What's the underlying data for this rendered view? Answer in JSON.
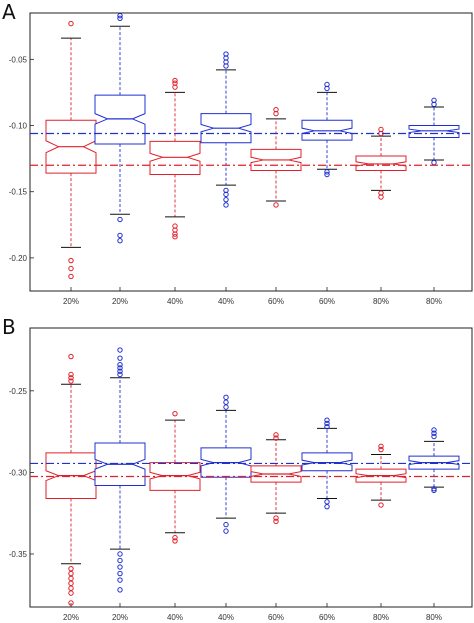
{
  "panels": [
    {
      "letter": "A"
    },
    {
      "letter": "B"
    }
  ],
  "colors": {
    "red": "#e0202a",
    "blue": "#2030d0",
    "black": "#111111"
  },
  "chart_data": [
    {
      "type": "box",
      "panel": "A",
      "title": "",
      "xlabel": "",
      "ylabel": "",
      "categories": [
        "20%",
        "20%",
        "40%",
        "40%",
        "60%",
        "60%",
        "80%",
        "80%"
      ],
      "box_colors": [
        "red",
        "blue",
        "red",
        "blue",
        "red",
        "blue",
        "red",
        "blue"
      ],
      "ylim": [
        -0.225,
        -0.015
      ],
      "yticks": [
        -0.2,
        -0.15,
        -0.1,
        -0.05
      ],
      "ytick_labels": [
        "-0.20",
        "-0.15",
        "-0.10",
        "-0.05"
      ],
      "reference_lines": [
        {
          "color": "blue",
          "style": "dash-dot",
          "value": -0.106
        },
        {
          "color": "red",
          "style": "dash-dot",
          "value": -0.13
        }
      ],
      "boxes": [
        {
          "q1": -0.136,
          "median": -0.116,
          "q3": -0.096,
          "notch": 0.0045,
          "whisker_low": -0.192,
          "whisker_high": -0.034,
          "outliers": [
            -0.202,
            -0.208,
            -0.214,
            -0.023
          ]
        },
        {
          "q1": -0.114,
          "median": -0.095,
          "q3": -0.077,
          "notch": 0.004,
          "whisker_low": -0.167,
          "whisker_high": -0.025,
          "outliers": [
            -0.171,
            -0.183,
            -0.187,
            -0.017,
            -0.019
          ]
        },
        {
          "q1": -0.137,
          "median": -0.124,
          "q3": -0.112,
          "notch": 0.003,
          "whisker_low": -0.169,
          "whisker_high": -0.075,
          "outliers": [
            -0.176,
            -0.179,
            -0.182,
            -0.184,
            -0.066,
            -0.068,
            -0.071
          ]
        },
        {
          "q1": -0.113,
          "median": -0.102,
          "q3": -0.091,
          "notch": 0.0028,
          "whisker_low": -0.145,
          "whisker_high": -0.058,
          "outliers": [
            -0.149,
            -0.152,
            -0.156,
            -0.16,
            -0.046,
            -0.049,
            -0.052,
            -0.055
          ]
        },
        {
          "q1": -0.134,
          "median": -0.126,
          "q3": -0.118,
          "notch": 0.002,
          "whisker_low": -0.157,
          "whisker_high": -0.095,
          "outliers": [
            -0.16,
            -0.088,
            -0.091
          ]
        },
        {
          "q1": -0.111,
          "median": -0.104,
          "q3": -0.096,
          "notch": 0.002,
          "whisker_low": -0.133,
          "whisker_high": -0.075,
          "outliers": [
            -0.135,
            -0.137,
            -0.069,
            -0.072
          ]
        },
        {
          "q1": -0.134,
          "median": -0.129,
          "q3": -0.123,
          "notch": 0.0016,
          "whisker_low": -0.149,
          "whisker_high": -0.108,
          "outliers": [
            -0.151,
            -0.154,
            -0.103,
            -0.106
          ]
        },
        {
          "q1": -0.109,
          "median": -0.104,
          "q3": -0.1,
          "notch": 0.0013,
          "whisker_low": -0.126,
          "whisker_high": -0.086,
          "outliers": [
            -0.128,
            -0.081,
            -0.084
          ]
        }
      ]
    },
    {
      "type": "box",
      "panel": "B",
      "title": "",
      "xlabel": "",
      "ylabel": "",
      "categories": [
        "20%",
        "20%",
        "40%",
        "40%",
        "60%",
        "60%",
        "80%",
        "80%"
      ],
      "box_colors": [
        "red",
        "blue",
        "red",
        "blue",
        "red",
        "blue",
        "red",
        "blue"
      ],
      "ylim": [
        -0.3825,
        -0.2115
      ],
      "yticks": [
        -0.35,
        -0.3,
        -0.25
      ],
      "ytick_labels": [
        "-0.35",
        "-0.30",
        "-0.25"
      ],
      "reference_lines": [
        {
          "color": "blue",
          "style": "dash-dot",
          "value": -0.2945
        },
        {
          "color": "red",
          "style": "dash-dot",
          "value": -0.3025
        }
      ],
      "boxes": [
        {
          "q1": -0.316,
          "median": -0.302,
          "q3": -0.288,
          "notch": 0.003,
          "whisker_low": -0.356,
          "whisker_high": -0.246,
          "outliers": [
            -0.359,
            -0.362,
            -0.365,
            -0.368,
            -0.371,
            -0.374,
            -0.38,
            -0.229,
            -0.24,
            -0.242,
            -0.244
          ]
        },
        {
          "q1": -0.308,
          "median": -0.295,
          "q3": -0.282,
          "notch": 0.003,
          "whisker_low": -0.347,
          "whisker_high": -0.242,
          "outliers": [
            -0.35,
            -0.354,
            -0.358,
            -0.362,
            -0.366,
            -0.372,
            -0.225,
            -0.23,
            -0.234,
            -0.236,
            -0.238,
            -0.24
          ]
        },
        {
          "q1": -0.311,
          "median": -0.302,
          "q3": -0.294,
          "notch": 0.002,
          "whisker_low": -0.337,
          "whisker_high": -0.268,
          "outliers": [
            -0.34,
            -0.342,
            -0.264
          ]
        },
        {
          "q1": -0.303,
          "median": -0.294,
          "q3": -0.285,
          "notch": 0.002,
          "whisker_low": -0.328,
          "whisker_high": -0.262,
          "outliers": [
            -0.332,
            -0.336,
            -0.254,
            -0.257,
            -0.26
          ]
        },
        {
          "q1": -0.306,
          "median": -0.301,
          "q3": -0.296,
          "notch": 0.0015,
          "whisker_low": -0.325,
          "whisker_high": -0.28,
          "outliers": [
            -0.328,
            -0.33,
            -0.277,
            -0.279
          ]
        },
        {
          "q1": -0.299,
          "median": -0.294,
          "q3": -0.288,
          "notch": 0.0015,
          "whisker_low": -0.316,
          "whisker_high": -0.273,
          "outliers": [
            -0.318,
            -0.321,
            -0.268,
            -0.27,
            -0.272
          ]
        },
        {
          "q1": -0.306,
          "median": -0.302,
          "q3": -0.298,
          "notch": 0.0012,
          "whisker_low": -0.317,
          "whisker_high": -0.289,
          "outliers": [
            -0.32,
            -0.284,
            -0.286
          ]
        },
        {
          "q1": -0.298,
          "median": -0.294,
          "q3": -0.29,
          "notch": 0.0012,
          "whisker_low": -0.309,
          "whisker_high": -0.281,
          "outliers": [
            -0.31,
            -0.311,
            -0.274,
            -0.276,
            -0.278
          ]
        }
      ]
    }
  ]
}
